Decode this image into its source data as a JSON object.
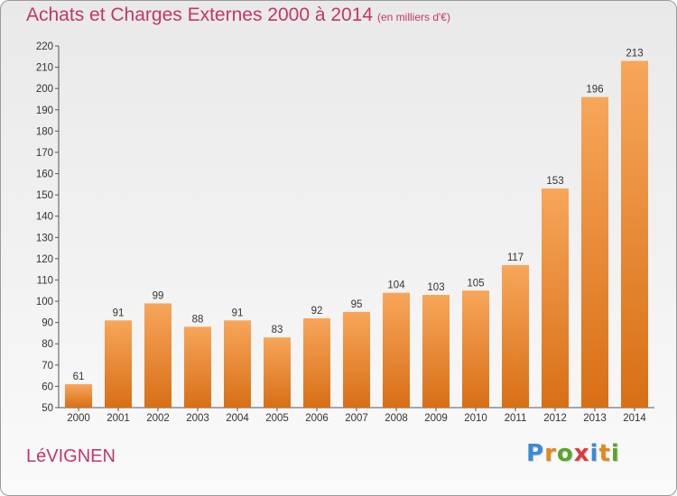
{
  "title": "Achats et Charges Externes 2000 à 2014",
  "subtitle": "(en milliers d'€)",
  "commune": "LéVIGNEN",
  "logo": {
    "letters": [
      "P",
      "r",
      "o",
      "x",
      "i",
      "t",
      "i"
    ],
    "colors": [
      "#3a8ad6",
      "#e08a1e",
      "#5aa42b",
      "#e03a3a",
      "#3a8ad6",
      "#e08a1e",
      "#5aa42b"
    ]
  },
  "colors": {
    "title": "#c3366b",
    "bar_top": "#f7a65a",
    "bar_bottom": "#d86f16"
  },
  "chart_data": {
    "type": "bar",
    "title": "Achats et Charges Externes 2000 à 2014",
    "subtitle": "(en milliers d'€)",
    "categories": [
      "2000",
      "2001",
      "2002",
      "2003",
      "2004",
      "2005",
      "2006",
      "2007",
      "2008",
      "2009",
      "2010",
      "2011",
      "2012",
      "2013",
      "2014"
    ],
    "values": [
      61,
      91,
      99,
      88,
      91,
      83,
      92,
      95,
      104,
      103,
      105,
      117,
      153,
      196,
      213
    ],
    "ylim": [
      50,
      220
    ],
    "yticks": [
      50,
      60,
      70,
      80,
      90,
      100,
      110,
      120,
      130,
      140,
      150,
      160,
      170,
      180,
      190,
      200,
      210,
      220
    ],
    "grid": false,
    "legend": "none"
  }
}
